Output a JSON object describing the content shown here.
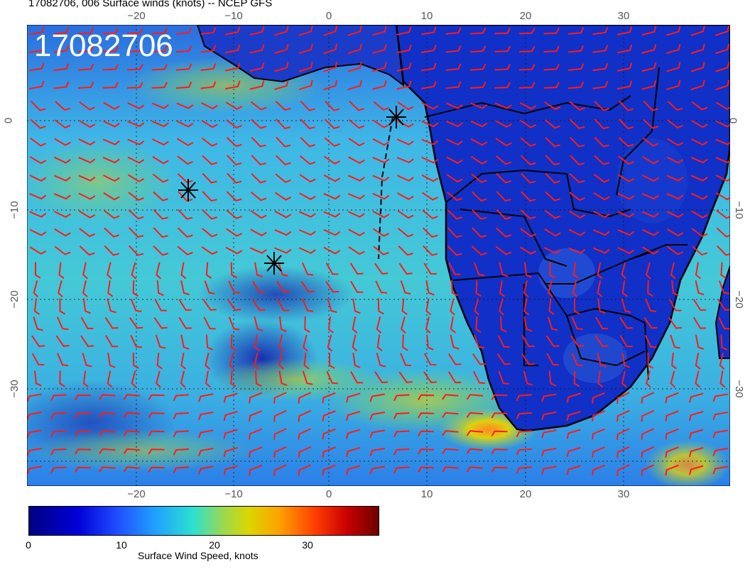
{
  "title": "17082706, 006 Surface winds (knots) -- NCEP GFS",
  "stamp": "17082706",
  "lon_ticks": [
    "−20",
    "−10",
    "0",
    "10",
    "20",
    "30"
  ],
  "lat_ticks": [
    "0",
    "−10",
    "−20",
    "−30"
  ],
  "colorbar": {
    "ticks": [
      "0",
      "10",
      "20",
      "30"
    ],
    "label": "Surface Wind Speed, knots"
  },
  "colors": {
    "barb": "#ff1a1a",
    "ocean_mid": "#3fb7e6",
    "land": "#1030c8"
  }
}
